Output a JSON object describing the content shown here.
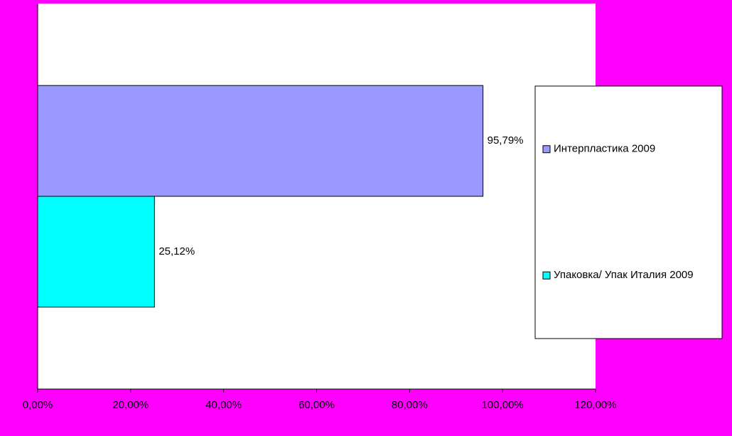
{
  "chart_data": {
    "type": "barh",
    "categories": [
      null
    ],
    "series": [
      {
        "name": "Интерпластика 2009",
        "color": "#9999ff",
        "values": [
          95.79
        ],
        "value_labels": [
          "95,79%"
        ]
      },
      {
        "name": "Упаковка/ Упак Италия 2009",
        "color": "#00ffff",
        "values": [
          25.12
        ],
        "value_labels": [
          "25,12%"
        ]
      }
    ],
    "xlim": [
      0,
      120
    ],
    "xticks": [
      {
        "value": 0,
        "label": "0,00%"
      },
      {
        "value": 20,
        "label": "20,00%"
      },
      {
        "value": 40,
        "label": "40,00%"
      },
      {
        "value": 60,
        "label": "60,00%"
      },
      {
        "value": 80,
        "label": "80,00%"
      },
      {
        "value": 100,
        "label": "100,00%"
      },
      {
        "value": 120,
        "label": "120,00%"
      }
    ],
    "legend": "right"
  }
}
